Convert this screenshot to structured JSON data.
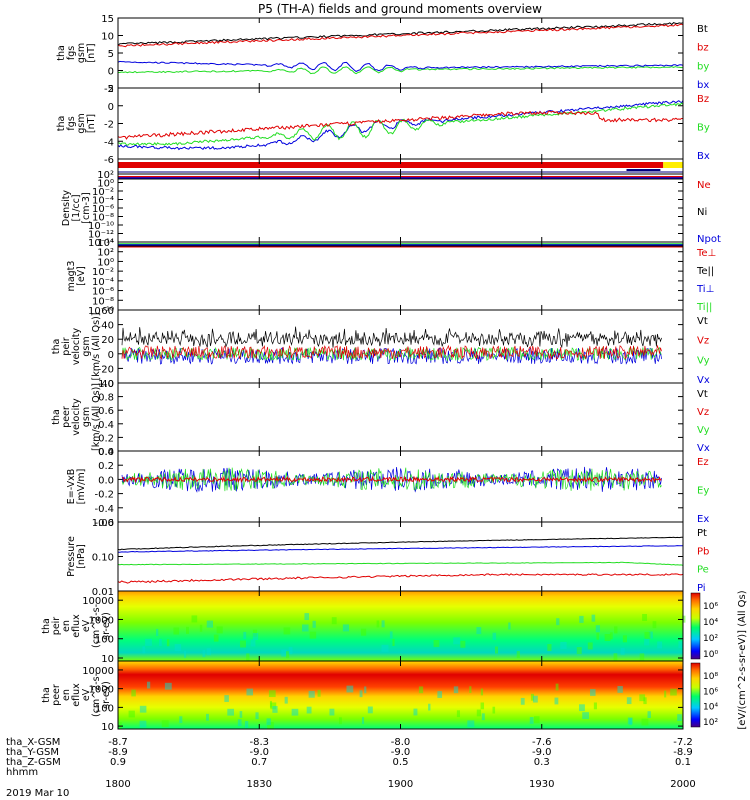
{
  "title": "P5 (TH-A) fields and ground moments overview",
  "date": "2019 Mar 10",
  "colors": {
    "black": "#000000",
    "red": "#e00000",
    "green": "#22dd22",
    "blue": "#0000dd",
    "yellow": "#ffee00"
  },
  "time_axis": {
    "times": [
      "1800",
      "1830",
      "1900",
      "1930",
      "2000"
    ],
    "rows": [
      {
        "label": "tha_X-GSM",
        "values": [
          "-8.7",
          "-8.3",
          "-8.0",
          "-7.6",
          "-7.2"
        ]
      },
      {
        "label": "tha_Y-GSM",
        "values": [
          "-8.9",
          "-9.0",
          "-9.0",
          "-9.0",
          "-8.9"
        ]
      },
      {
        "label": "tha_Z-GSM",
        "values": [
          "0.9",
          "0.7",
          "0.5",
          "0.3",
          "0.1"
        ]
      },
      {
        "label": "hhmm",
        "values": []
      }
    ]
  },
  "chart_data": [
    {
      "id": "fgs",
      "type": "line",
      "ylabel": [
        "tha",
        "fgs",
        "gsm",
        "[nT]"
      ],
      "ylim": [
        -5,
        15
      ],
      "yticks": [
        "15",
        "10",
        "5",
        "0",
        "-5"
      ],
      "series": [
        {
          "name": "Bt",
          "color": "black"
        },
        {
          "name": "bz",
          "color": "red"
        },
        {
          "name": "by",
          "color": "green"
        },
        {
          "name": "bx",
          "color": "blue"
        }
      ]
    },
    {
      "id": "fgs2",
      "type": "line",
      "ylabel": [
        "tha",
        "fgs",
        "gsm",
        "[nT]"
      ],
      "ylim": [
        -6,
        2
      ],
      "yticks": [
        "2",
        "0",
        "-2",
        "-4",
        "-6"
      ],
      "series": [
        {
          "name": "Bz",
          "color": "red"
        },
        {
          "name": "By",
          "color": "green"
        },
        {
          "name": "Bx",
          "color": "blue"
        }
      ]
    },
    {
      "id": "density",
      "type": "line",
      "ylabel": [
        "Density",
        "[1/cc]",
        "[cm-3]"
      ],
      "yticks": [
        "10²",
        "10⁰",
        "10⁻²",
        "10⁻⁴",
        "10⁻⁶",
        "10⁻⁸",
        "10⁻¹⁰",
        "10⁻¹²",
        "10⁻¹⁴"
      ],
      "series": [
        {
          "name": "Ne",
          "color": "red"
        },
        {
          "name": "Ni",
          "color": "black"
        },
        {
          "name": "Npot",
          "color": "blue"
        }
      ]
    },
    {
      "id": "magt3",
      "type": "line",
      "ylabel": [
        "magt3",
        "[eV]"
      ],
      "yticks": [
        "10⁴",
        "10²",
        "10⁰",
        "10⁻²",
        "10⁻⁴",
        "10⁻⁶",
        "10⁻⁸",
        "10⁻¹⁰"
      ],
      "series": [
        {
          "name": "Te⊥",
          "color": "red"
        },
        {
          "name": "Te||",
          "color": "black"
        },
        {
          "name": "Ti⊥",
          "color": "blue"
        },
        {
          "name": "Ti||",
          "color": "green"
        }
      ]
    },
    {
      "id": "peirv",
      "type": "line",
      "ylabel": [
        "tha",
        "peir",
        "velocity",
        "gsm",
        "[km/s (All Qs)]"
      ],
      "ylim": [
        -40,
        60
      ],
      "yticks": [
        "60",
        "40",
        "20",
        "0",
        "-20",
        "-40"
      ],
      "series": [
        {
          "name": "Vt",
          "color": "black"
        },
        {
          "name": "Vz",
          "color": "red"
        },
        {
          "name": "Vy",
          "color": "green"
        },
        {
          "name": "Vx",
          "color": "blue"
        }
      ]
    },
    {
      "id": "peerv",
      "type": "line",
      "ylabel": [
        "tha",
        "peer",
        "velocity",
        "gsm",
        "[km/s (All Qs)]"
      ],
      "ylim": [
        0,
        1
      ],
      "yticks": [
        "1.0",
        "0.8",
        "0.6",
        "0.4",
        "0.2",
        "0.0"
      ],
      "series": [
        {
          "name": "Vt",
          "color": "black"
        },
        {
          "name": "Vz",
          "color": "red"
        },
        {
          "name": "Vy",
          "color": "green"
        },
        {
          "name": "Vx",
          "color": "blue"
        }
      ]
    },
    {
      "id": "exb",
      "type": "line",
      "ylabel": [
        "E=-VxB",
        "[mV/m]"
      ],
      "ylim": [
        -0.6,
        0.4
      ],
      "yticks": [
        "0.4",
        "0.2",
        "0.0",
        "-0.2",
        "-0.4",
        "-0.6"
      ],
      "series": [
        {
          "name": "Ez",
          "color": "red"
        },
        {
          "name": "Ey",
          "color": "green"
        },
        {
          "name": "Ex",
          "color": "blue"
        }
      ]
    },
    {
      "id": "pressure",
      "type": "line",
      "ylabel": [
        "Pressure",
        "[nPa]"
      ],
      "yscale": "log",
      "ylim": [
        0.01,
        1
      ],
      "yticks": [
        "1.00",
        "0.10",
        "0.01"
      ],
      "series": [
        {
          "name": "Pt",
          "color": "black"
        },
        {
          "name": "Pb",
          "color": "red"
        },
        {
          "name": "Pe",
          "color": "green"
        },
        {
          "name": "Pi",
          "color": "blue"
        }
      ]
    },
    {
      "id": "peir_spec",
      "type": "heatmap",
      "ylabel": [
        "tha",
        "peir",
        "en",
        "eflux",
        "eV",
        "(cm^2-s-",
        "sr-eV)"
      ],
      "yscale": "log",
      "ylim": [
        7,
        30000
      ],
      "yticks": [
        "10000",
        "1000",
        "100",
        "10"
      ]
    },
    {
      "id": "peer_spec",
      "type": "heatmap",
      "ylabel": [
        "tha",
        "peer",
        "en",
        "eflux",
        "eV",
        "(cm^2-s-",
        "sr-eV)"
      ],
      "yscale": "log",
      "ylim": [
        7,
        30000
      ],
      "yticks": [
        "10000",
        "1000",
        "100",
        "10"
      ]
    }
  ],
  "colorbars": [
    {
      "ticks": [
        "10⁶",
        "10⁴",
        "10²",
        "10⁰"
      ],
      "label": "[eV/(cm^2-s-sr-eV)] (All Qs)"
    },
    {
      "ticks": [
        "10⁸",
        "10⁶",
        "10⁴",
        "10²"
      ],
      "label": "[eV/(cm^2-s-sr-eV)] (All Qs)"
    }
  ]
}
